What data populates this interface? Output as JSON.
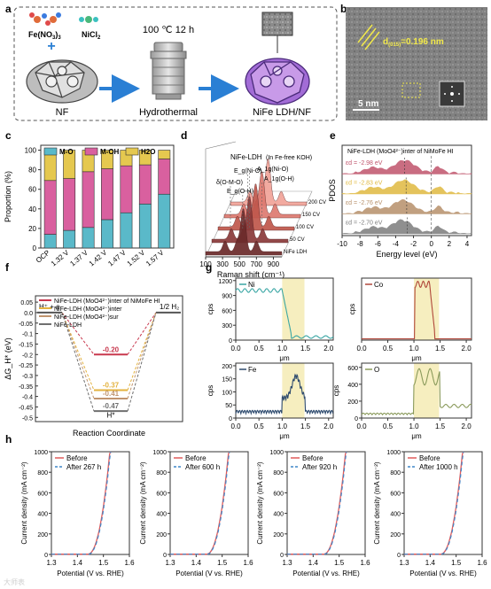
{
  "panels": {
    "a": {
      "letter": "a",
      "reagent1": "Fe(NO",
      "reagent1_sub1": "3",
      "reagent1_mid": ")",
      "reagent1_sub2": "3",
      "reagent2": "NiCl",
      "reagent2_sub": "2",
      "condition": "100 ℃ 12 h",
      "label_nf": "NF",
      "label_hydro": "Hydrothermal",
      "label_product": "NiFe LDH/NF"
    },
    "b": {
      "letter": "b",
      "d_label": "d",
      "d_sub": "(015)",
      "d_value": "=0.196 nm",
      "scale": "5 nm"
    },
    "c": {
      "letter": "c"
    },
    "d": {
      "letter": "d"
    },
    "e": {
      "letter": "e"
    },
    "f": {
      "letter": "f"
    },
    "g": {
      "letter": "g"
    },
    "h": {
      "letter": "h"
    }
  },
  "watermark": "大师表",
  "chart_data": [
    {
      "panel": "c",
      "type": "bar",
      "stacked": true,
      "categories": [
        "OCP",
        "1.32 V",
        "1.37 V",
        "1.42 V",
        "1.47 V",
        "1.52 V",
        "1.57 V"
      ],
      "series": [
        {
          "name": "M-O",
          "color": "#5ab9c9",
          "values": [
            14,
            18,
            21,
            29,
            36,
            45,
            55
          ]
        },
        {
          "name": "M-OH",
          "color": "#d9609f",
          "values": [
            55,
            53,
            57,
            52,
            48,
            40,
            36
          ]
        },
        {
          "name": "H2O",
          "color": "#e5c84f",
          "values": [
            31,
            29,
            22,
            19,
            16,
            15,
            9
          ]
        }
      ],
      "ylabel": "Proportion (%)",
      "yticks": [
        0,
        20,
        40,
        60,
        80,
        100
      ],
      "ylim": [
        0,
        105
      ],
      "legend": "top"
    },
    {
      "panel": "d",
      "type": "line",
      "waterfall": true,
      "title": "NiFe-LDH",
      "subtitle": "(In Fe-free KOH)",
      "xlabel": "Raman shift (cm⁻¹)",
      "xticks": [
        100,
        300,
        500,
        700,
        900
      ],
      "xlim": [
        100,
        1000
      ],
      "series_names": [
        "NiFe LDH",
        "50 CV",
        "100 CV",
        "150 CV",
        "200 CV"
      ],
      "peak_labels": [
        "δ(O-M-O)",
        "E_g(O-H)",
        "E_g(Ni-O)",
        "A_1g(Ni-O)",
        "A_1g(O-H)"
      ],
      "peaks": [
        330,
        475,
        535,
        555,
        700
      ]
    },
    {
      "panel": "e",
      "type": "area",
      "title": "NiFe-LDH (MoO4²⁻)inter of NiMoFe HI",
      "xlabel": "Energy level (eV)",
      "ylabel": "PDOS",
      "xticks": [
        -10,
        -8,
        -6,
        -4,
        -2,
        0,
        2,
        4
      ],
      "xlim": [
        -10,
        4.5
      ],
      "series": [
        {
          "label": "εd = -2.98 eV",
          "value": -2.98,
          "color": "#c0546c"
        },
        {
          "label": "εd = -2.83 eV",
          "value": -2.83,
          "color": "#e0b940"
        },
        {
          "label": "εd = -2.76 eV",
          "value": -2.76,
          "color": "#b7906a"
        },
        {
          "label": "εd = -2.70 eV",
          "value": -2.7,
          "color": "#7c7c7c"
        }
      ]
    },
    {
      "panel": "f",
      "type": "line",
      "xlabel": "Reaction Coordinate",
      "ylabel": "ΔG_H* (eV)",
      "yticks": [
        0.05,
        0.0,
        -0.05,
        -0.1,
        -0.15,
        -0.2,
        -0.25,
        -0.3,
        -0.35,
        -0.4,
        -0.45,
        -0.5
      ],
      "ylim": [
        -0.52,
        0.08
      ],
      "states": [
        "H⁺ + e",
        "H*",
        "1/2 H₂"
      ],
      "series": [
        {
          "name": "NiFe-LDH (MoO4²⁻)inter of NiMoFe HI",
          "value": -0.2,
          "color": "#c8384e"
        },
        {
          "name": "NiFe-LDH (MoO4²⁻)inter",
          "value": -0.37,
          "color": "#e3b23f"
        },
        {
          "name": "NiFe-LDH (MoO4²⁻)sur",
          "value": -0.41,
          "color": "#c0946e"
        },
        {
          "name": "NiFe-LDH",
          "value": -0.47,
          "color": "#6f6f6f"
        }
      ],
      "value_labels": [
        "-0.20",
        "-0.37",
        "-0.41",
        "-0.47"
      ],
      "legend": "top-left"
    },
    {
      "panel": "g",
      "type": "line",
      "subplots": [
        {
          "element": "Ni",
          "color": "#3aa6a4",
          "ylabel": "cps",
          "yticks": [
            0,
            300,
            600,
            900,
            1200
          ],
          "ylim": [
            0,
            1250
          ],
          "xlabel": "μm",
          "xticks": [
            0.0,
            0.5,
            1.0,
            1.5,
            2.0
          ],
          "xlim": [
            0,
            2.1
          ],
          "highlight": [
            1.0,
            1.48
          ]
        },
        {
          "element": "Co",
          "color": "#b0473a",
          "ylabel": "cps",
          "yticks": [],
          "xlabel": "μm",
          "xticks": [
            0.0,
            0.5,
            1.0,
            1.5,
            2.0
          ],
          "xlim": [
            0,
            2.1
          ],
          "highlight": [
            1.0,
            1.48
          ]
        },
        {
          "element": "Fe",
          "color": "#2d4a6e",
          "ylabel": "cps",
          "yticks": [
            0,
            50,
            100,
            150,
            200
          ],
          "ylim": [
            0,
            210
          ],
          "xlabel": "μm",
          "xticks": [
            0.0,
            0.5,
            1.0,
            1.5,
            2.0
          ],
          "xlim": [
            0,
            2.1
          ],
          "highlight": [
            1.0,
            1.48
          ]
        },
        {
          "element": "O",
          "color": "#8a9a5b",
          "ylabel": "cps",
          "yticks": [
            0,
            200,
            400,
            600
          ],
          "ylim": [
            0,
            650
          ],
          "xlabel": "μm",
          "xticks": [
            0.0,
            0.5,
            1.0,
            1.5,
            2.0
          ],
          "xlim": [
            0,
            2.1
          ],
          "highlight": [
            1.0,
            1.48
          ]
        }
      ]
    },
    {
      "panel": "h",
      "type": "line",
      "subplots": [
        {
          "after_label": "After 267 h"
        },
        {
          "after_label": "After 600 h"
        },
        {
          "after_label": "After 920 h"
        },
        {
          "after_label": "After 1000 h"
        }
      ],
      "before_label": "Before",
      "before_color": "#e05a5a",
      "after_color": "#3f86c9",
      "xlabel": "Potential (V vs. RHE)",
      "ylabel": "Current density (mA cm⁻²)",
      "xticks": [
        1.3,
        1.4,
        1.5,
        1.6
      ],
      "xlim": [
        1.3,
        1.6
      ],
      "yticks": [
        0,
        200,
        400,
        600,
        800,
        1000
      ],
      "ylim": [
        0,
        1000
      ]
    }
  ]
}
